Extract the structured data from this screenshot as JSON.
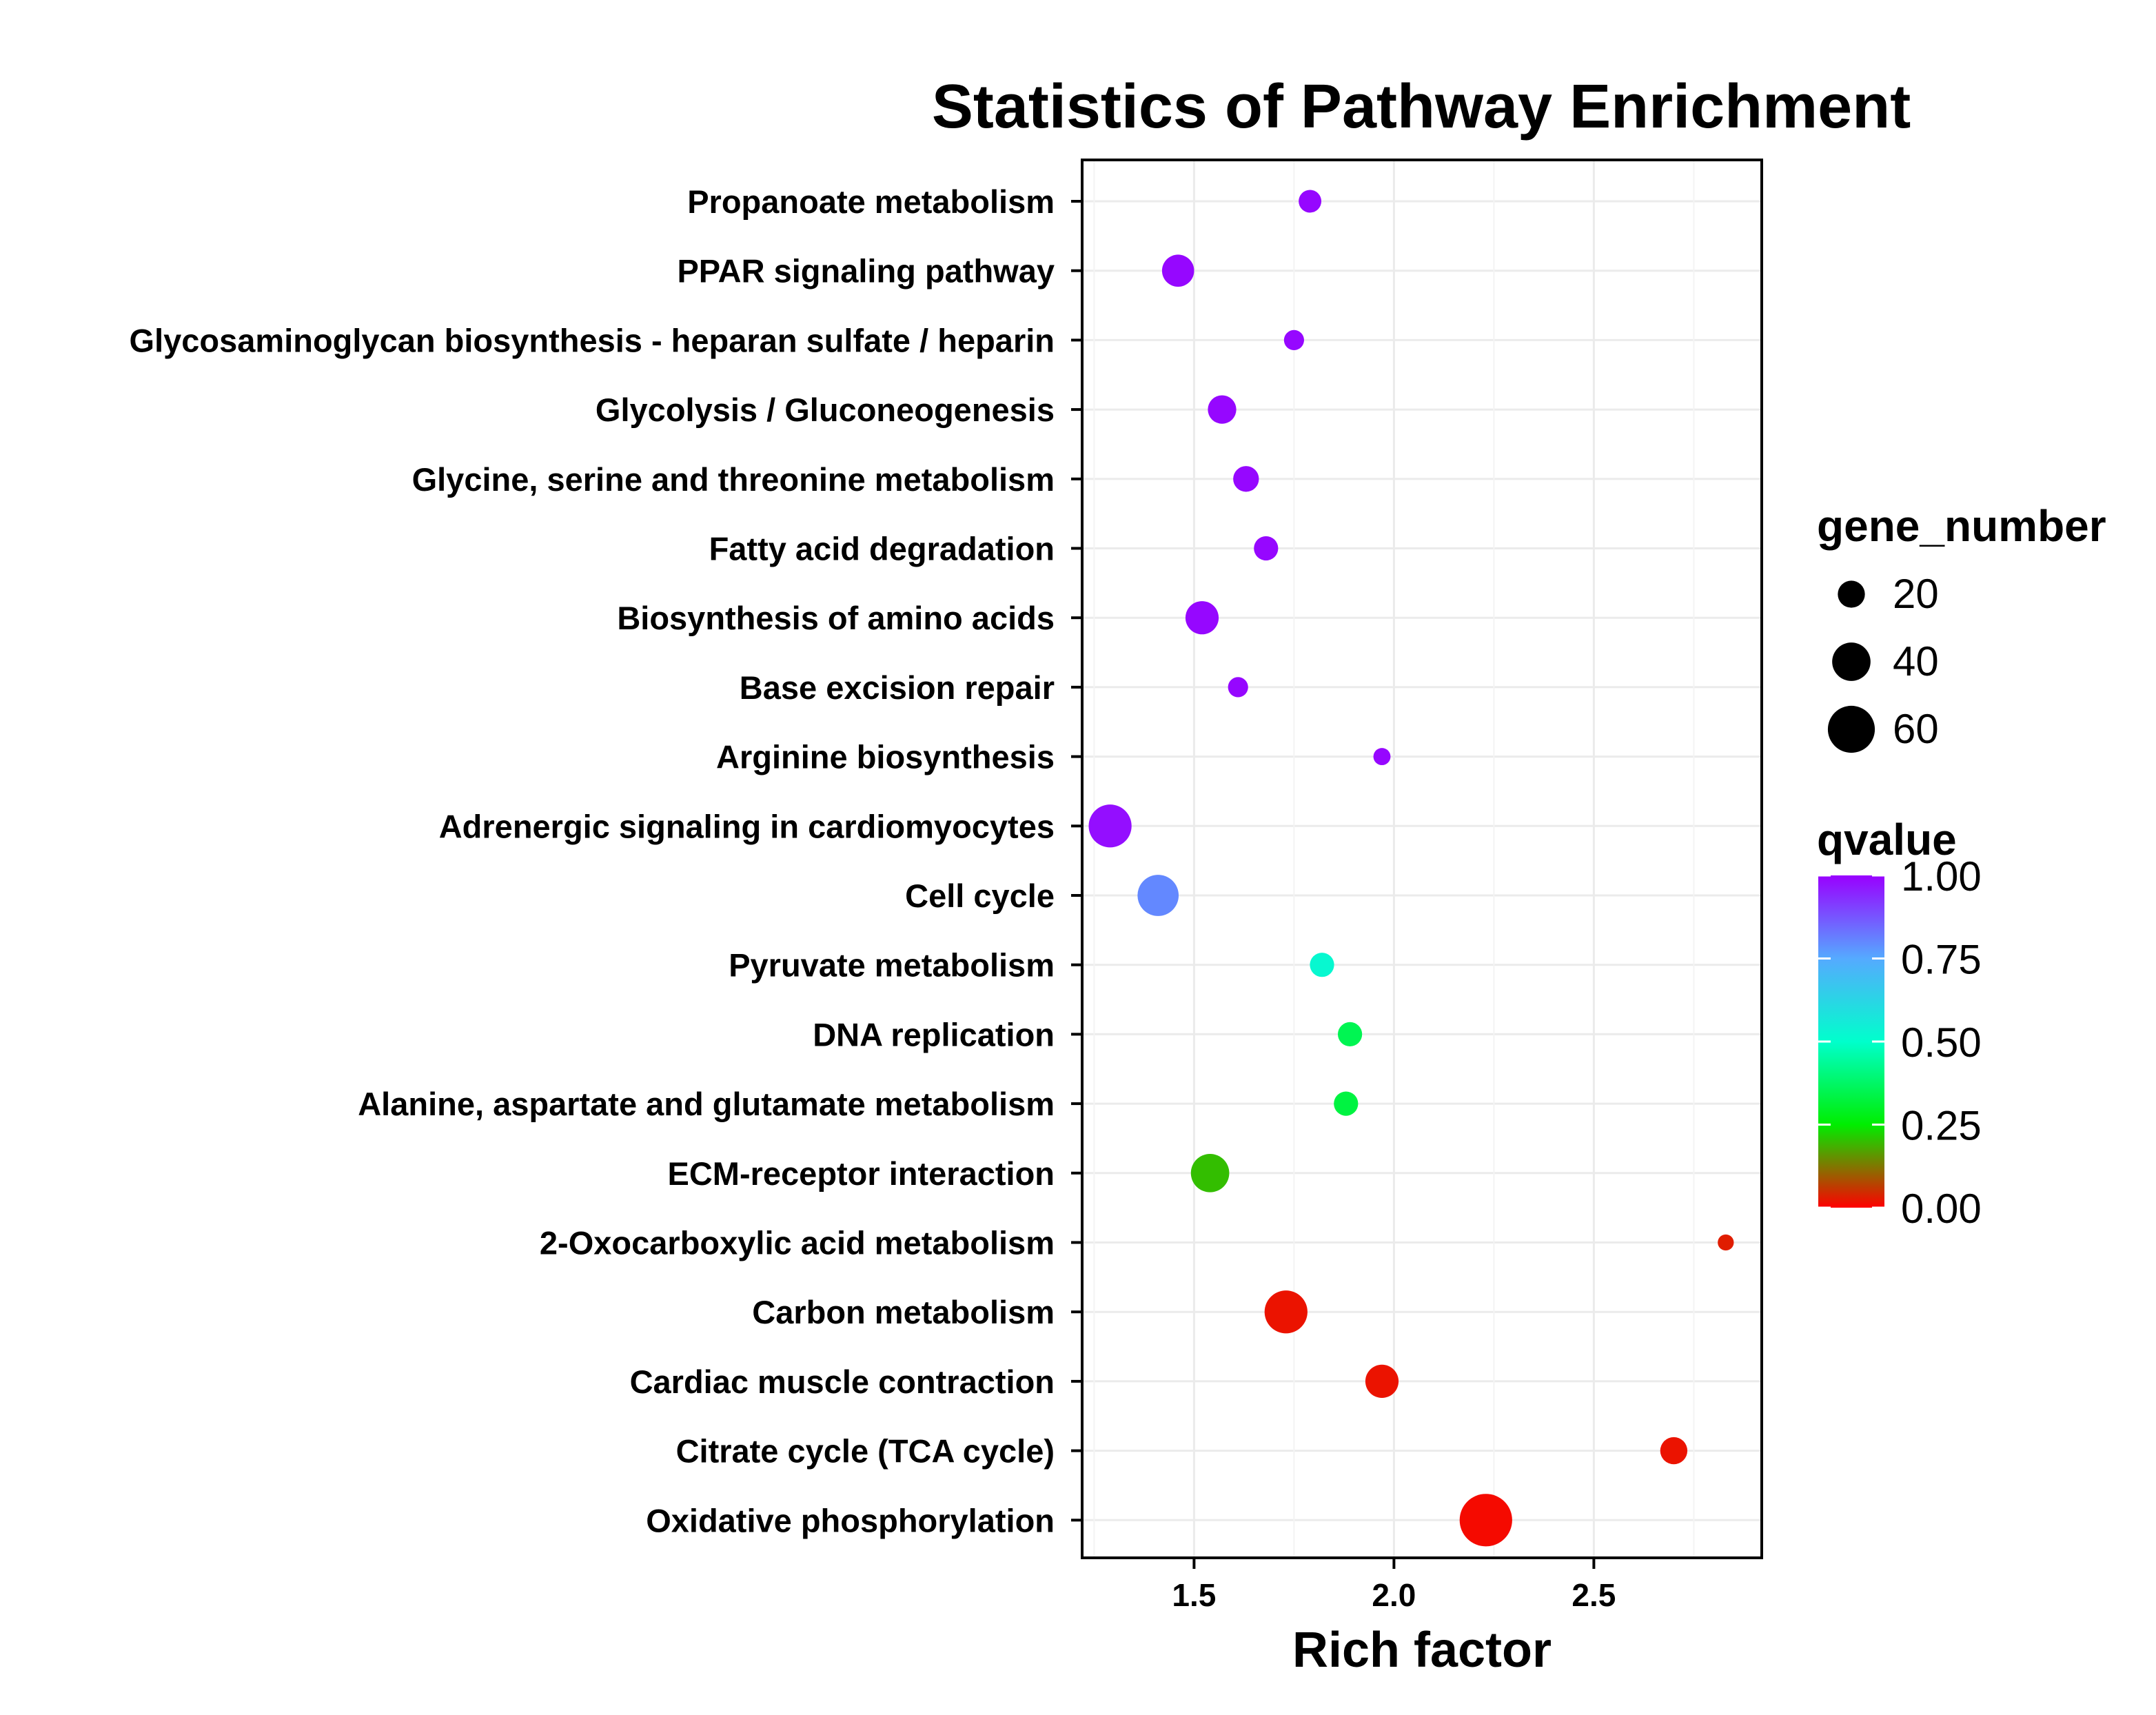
{
  "chart_data": {
    "type": "scatter",
    "title": "Statistics of Pathway Enrichment",
    "xlabel": "Rich factor",
    "ylabel": "",
    "xlim": [
      1.22,
      2.92
    ],
    "xticks": [
      1.5,
      2.0,
      2.5
    ],
    "x_tick_labels": [
      "1.5",
      "2.0",
      "2.5"
    ],
    "grid": true,
    "legend_position": "right",
    "categories": [
      "Propanoate metabolism",
      "PPAR signaling pathway",
      "Glycosaminoglycan biosynthesis - heparan sulfate / heparin",
      "Glycolysis / Gluconeogenesis",
      "Glycine, serine and threonine metabolism",
      "Fatty acid degradation",
      "Biosynthesis of amino acids",
      "Base excision repair",
      "Arginine biosynthesis",
      "Adrenergic signaling in cardiomyocytes",
      "Cell cycle",
      "Pyruvate metabolism",
      "DNA replication",
      "Alanine, aspartate and glutamate metabolism",
      "ECM-receptor interaction",
      "2-Oxocarboxylic acid metabolism",
      "Carbon metabolism",
      "Cardiac muscle contraction",
      "Citrate cycle (TCA cycle)",
      "Oxidative phosphorylation"
    ],
    "points": [
      {
        "pathway": "Propanoate metabolism",
        "rich_factor": 1.79,
        "gene_number": 14,
        "qvalue": 0.99
      },
      {
        "pathway": "PPAR signaling pathway",
        "rich_factor": 1.46,
        "gene_number": 28,
        "qvalue": 0.99
      },
      {
        "pathway": "Glycosaminoglycan biosynthesis - heparan sulfate / heparin",
        "rich_factor": 1.75,
        "gene_number": 11,
        "qvalue": 0.99
      },
      {
        "pathway": "Glycolysis / Gluconeogenesis",
        "rich_factor": 1.57,
        "gene_number": 22,
        "qvalue": 0.99
      },
      {
        "pathway": "Glycine, serine and threonine metabolism",
        "rich_factor": 1.63,
        "gene_number": 18,
        "qvalue": 0.99
      },
      {
        "pathway": "Fatty acid degradation",
        "rich_factor": 1.68,
        "gene_number": 16,
        "qvalue": 0.99
      },
      {
        "pathway": "Biosynthesis of amino acids",
        "rich_factor": 1.52,
        "gene_number": 30,
        "qvalue": 0.99
      },
      {
        "pathway": "Base excision repair",
        "rich_factor": 1.61,
        "gene_number": 11,
        "qvalue": 0.99
      },
      {
        "pathway": "Arginine biosynthesis",
        "rich_factor": 1.97,
        "gene_number": 8,
        "qvalue": 0.99
      },
      {
        "pathway": "Adrenergic signaling in cardiomyocytes",
        "rich_factor": 1.29,
        "gene_number": 50,
        "qvalue": 0.98
      },
      {
        "pathway": "Cell cycle",
        "rich_factor": 1.41,
        "gene_number": 46,
        "qvalue": 0.8
      },
      {
        "pathway": "Pyruvate metabolism",
        "rich_factor": 1.82,
        "gene_number": 16,
        "qvalue": 0.52
      },
      {
        "pathway": "DNA replication",
        "rich_factor": 1.89,
        "gene_number": 16,
        "qvalue": 0.35
      },
      {
        "pathway": "Alanine, aspartate and glutamate metabolism",
        "rich_factor": 1.88,
        "gene_number": 16,
        "qvalue": 0.33
      },
      {
        "pathway": "ECM-receptor interaction",
        "rich_factor": 1.54,
        "gene_number": 40,
        "qvalue": 0.2
      },
      {
        "pathway": "2-Oxocarboxylic acid metabolism",
        "rich_factor": 2.83,
        "gene_number": 7,
        "qvalue": 0.03
      },
      {
        "pathway": "Carbon metabolism",
        "rich_factor": 1.73,
        "gene_number": 50,
        "qvalue": 0.02
      },
      {
        "pathway": "Cardiac muscle contraction",
        "rich_factor": 1.97,
        "gene_number": 30,
        "qvalue": 0.02
      },
      {
        "pathway": "Citrate cycle (TCA cycle)",
        "rich_factor": 2.7,
        "gene_number": 20,
        "qvalue": 0.02
      },
      {
        "pathway": "Oxidative phosphorylation",
        "rich_factor": 2.23,
        "gene_number": 75,
        "qvalue": 0.01
      }
    ],
    "size_legend": {
      "title": "gene_number",
      "entries": [
        {
          "label": "20",
          "value": 20
        },
        {
          "label": "40",
          "value": 40
        },
        {
          "label": "60",
          "value": 60
        }
      ]
    },
    "color_legend": {
      "title": "qvalue",
      "range": [
        0,
        1
      ],
      "tick_labels": [
        "1.00",
        "0.75",
        "0.50",
        "0.25",
        "0.00"
      ],
      "tick_values": [
        1.0,
        0.75,
        0.5,
        0.25,
        0.0
      ],
      "gradient_stops": [
        {
          "value": 0.0,
          "color": "#ff0000"
        },
        {
          "value": 0.25,
          "color": "#00ee00"
        },
        {
          "value": 0.5,
          "color": "#00ffcc"
        },
        {
          "value": 0.75,
          "color": "#55aaff"
        },
        {
          "value": 1.0,
          "color": "#9900ff"
        }
      ]
    },
    "colors": {
      "panel_border": "#000000",
      "grid": "#ebebeb",
      "text": "#000000",
      "background": "#ffffff"
    }
  }
}
